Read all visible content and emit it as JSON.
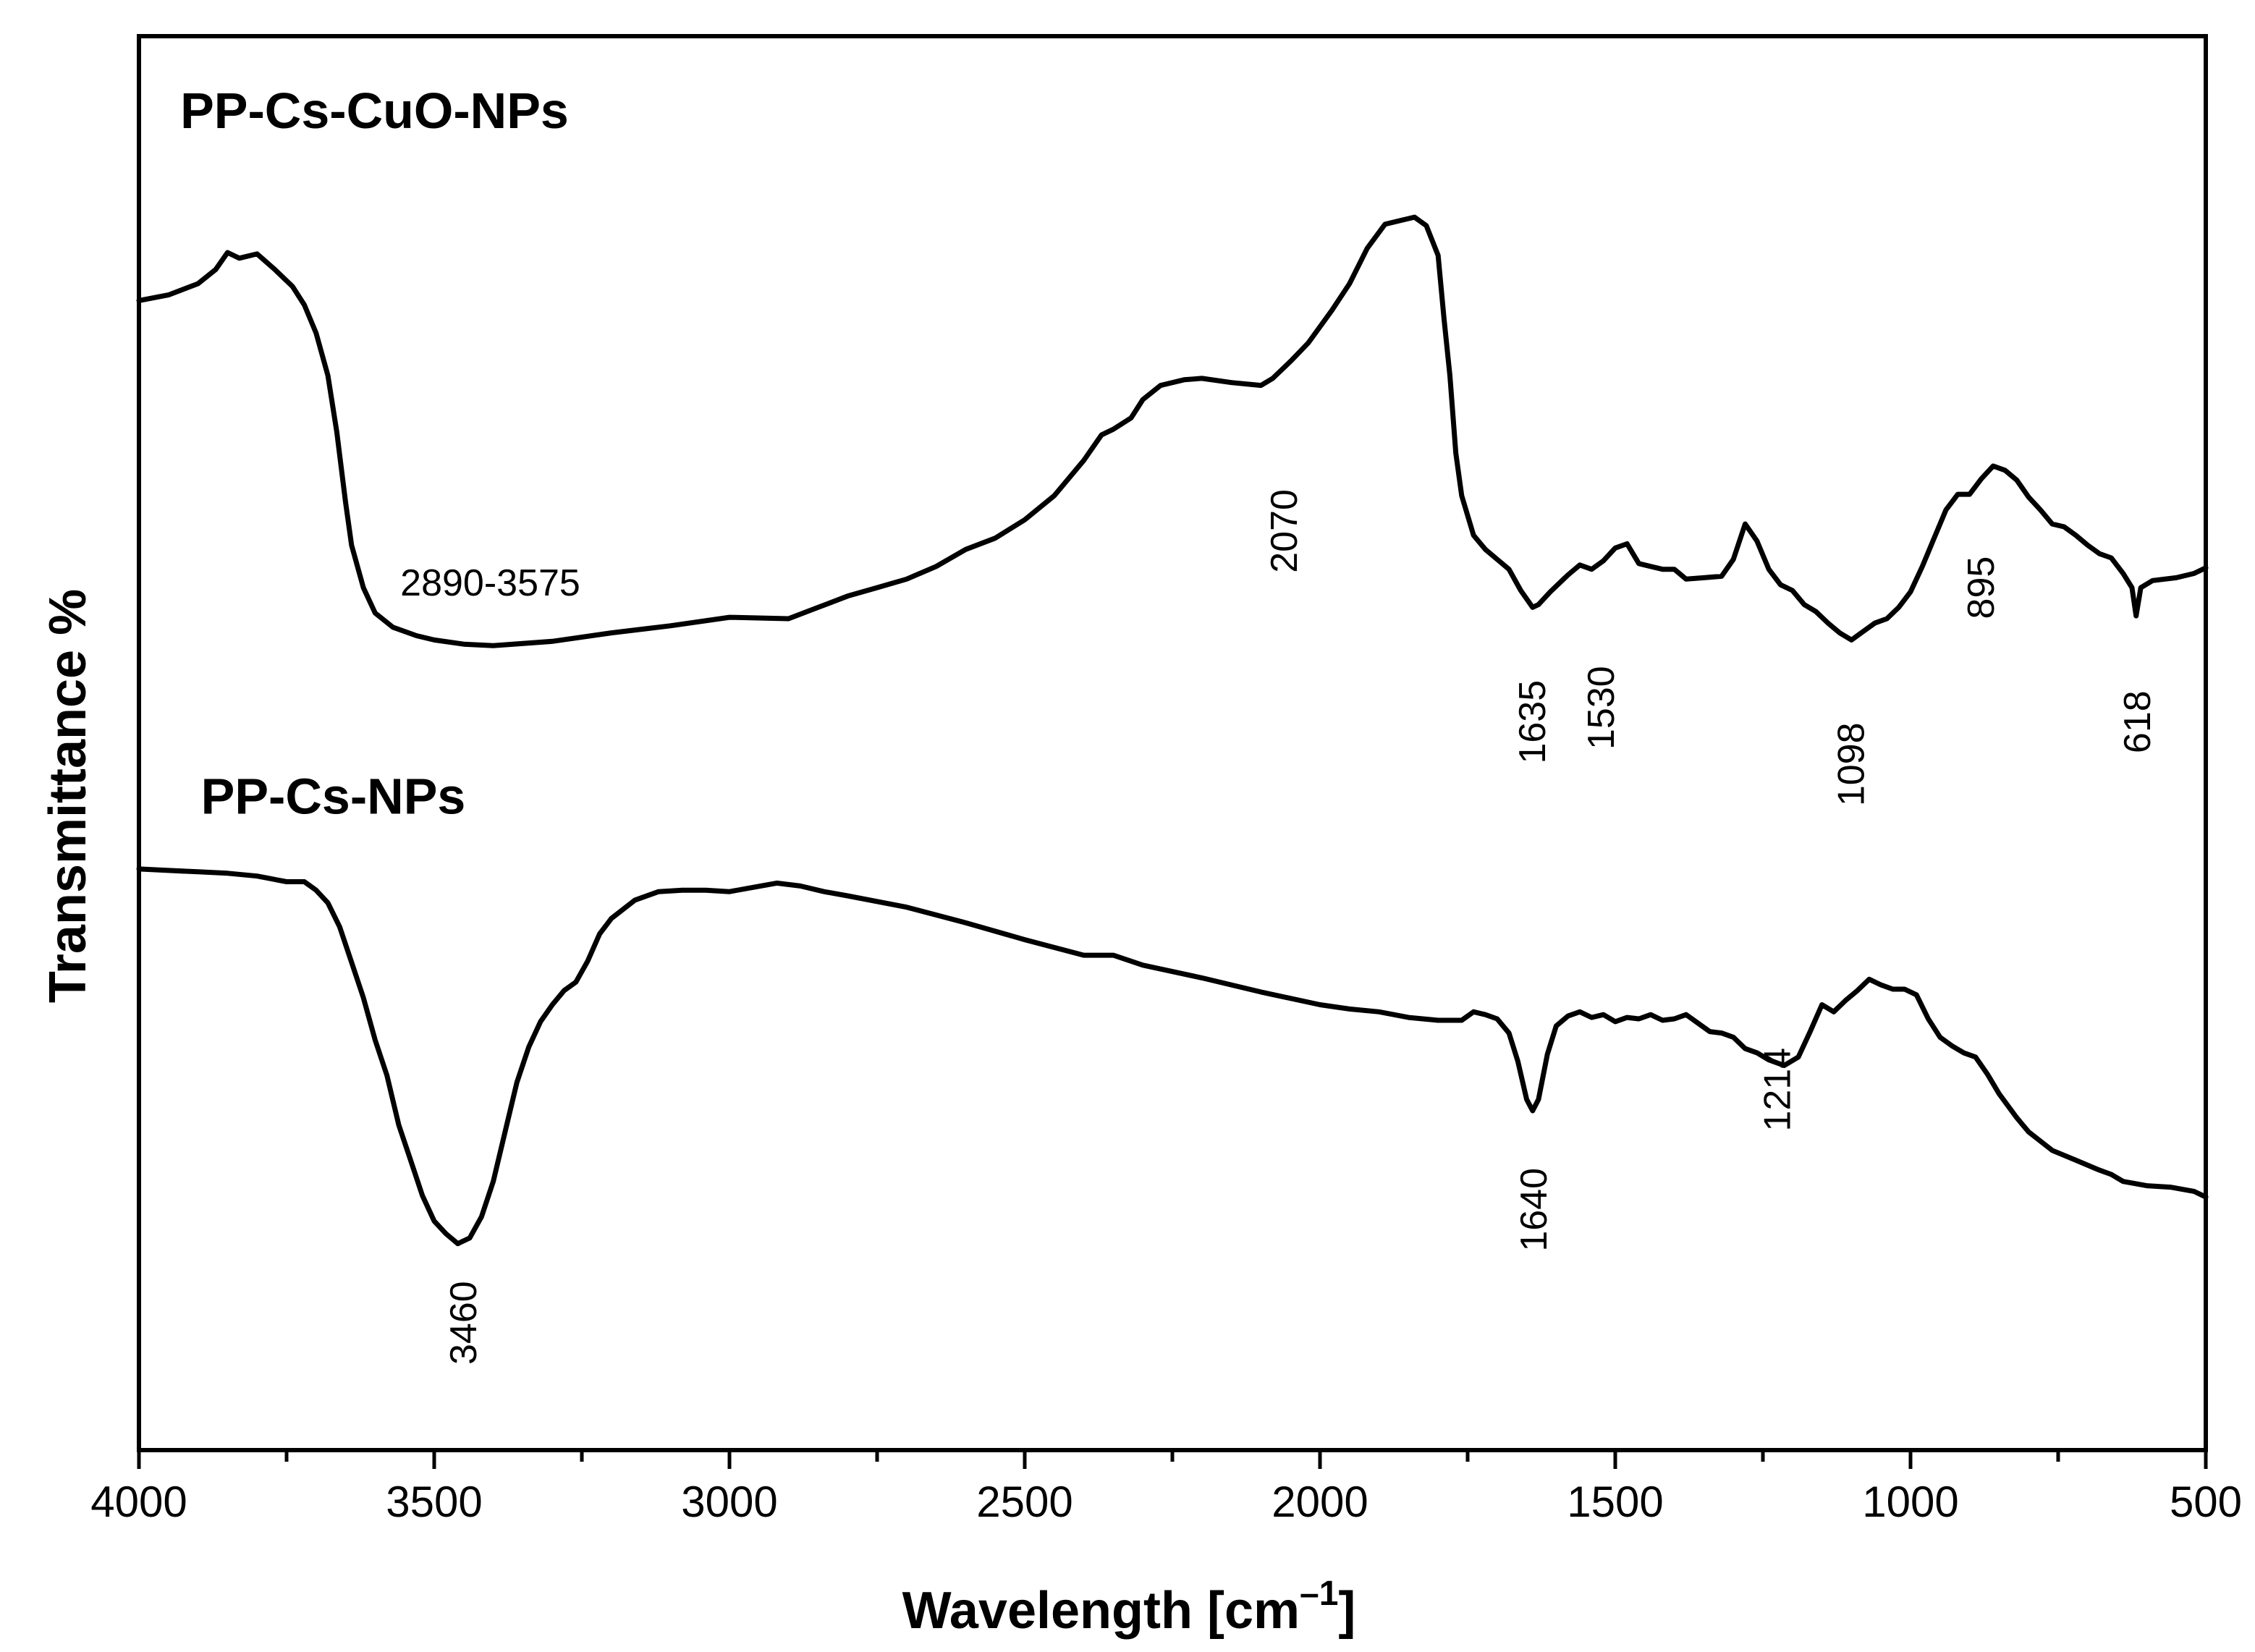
{
  "chart_data": {
    "type": "line",
    "title": "",
    "xlabel": "Wavelength [cm",
    "xlabel_sup": "–1",
    "xlabel_end": "]",
    "ylabel": "Transmittance %",
    "xlim": [
      4000,
      500
    ],
    "ylim": [
      0,
      100
    ],
    "x_ticks": [
      "4000",
      "3500",
      "3000",
      "2500",
      "2000",
      "1500",
      "1000",
      "500"
    ],
    "y_ticks_shown": false,
    "series": [
      {
        "name": "PP-Cs-CuO-NPs",
        "points": [
          [
            4000,
            81.3
          ],
          [
            3950,
            81.7
          ],
          [
            3900,
            82.5
          ],
          [
            3870,
            83.5
          ],
          [
            3850,
            84.7
          ],
          [
            3830,
            84.3
          ],
          [
            3800,
            84.6
          ],
          [
            3770,
            83.5
          ],
          [
            3740,
            82.3
          ],
          [
            3720,
            81.0
          ],
          [
            3700,
            79.0
          ],
          [
            3680,
            76.0
          ],
          [
            3665,
            72.0
          ],
          [
            3650,
            67.0
          ],
          [
            3640,
            64.0
          ],
          [
            3620,
            61.0
          ],
          [
            3600,
            59.2
          ],
          [
            3570,
            58.2
          ],
          [
            3530,
            57.6
          ],
          [
            3500,
            57.3
          ],
          [
            3450,
            57.0
          ],
          [
            3400,
            56.9
          ],
          [
            3300,
            57.2
          ],
          [
            3200,
            57.8
          ],
          [
            3100,
            58.3
          ],
          [
            3000,
            58.9
          ],
          [
            2900,
            58.8
          ],
          [
            2850,
            59.6
          ],
          [
            2800,
            60.4
          ],
          [
            2750,
            61.0
          ],
          [
            2700,
            61.6
          ],
          [
            2650,
            62.5
          ],
          [
            2600,
            63.7
          ],
          [
            2550,
            64.5
          ],
          [
            2500,
            65.8
          ],
          [
            2450,
            67.5
          ],
          [
            2400,
            70.0
          ],
          [
            2370,
            71.8
          ],
          [
            2350,
            72.2
          ],
          [
            2320,
            73.0
          ],
          [
            2300,
            74.3
          ],
          [
            2270,
            75.3
          ],
          [
            2230,
            75.7
          ],
          [
            2200,
            75.8
          ],
          [
            2150,
            75.5
          ],
          [
            2100,
            75.3
          ],
          [
            2080,
            75.8
          ],
          [
            2050,
            77.0
          ],
          [
            2020,
            78.3
          ],
          [
            1980,
            80.6
          ],
          [
            1950,
            82.5
          ],
          [
            1920,
            85.0
          ],
          [
            1890,
            86.7
          ],
          [
            1860,
            87.0
          ],
          [
            1840,
            87.2
          ],
          [
            1820,
            86.6
          ],
          [
            1800,
            84.5
          ],
          [
            1790,
            80.0
          ],
          [
            1780,
            76.0
          ],
          [
            1770,
            70.5
          ],
          [
            1760,
            67.5
          ],
          [
            1740,
            64.7
          ],
          [
            1720,
            63.7
          ],
          [
            1700,
            63.0
          ],
          [
            1680,
            62.3
          ],
          [
            1660,
            60.8
          ],
          [
            1640,
            59.6
          ],
          [
            1630,
            59.8
          ],
          [
            1610,
            60.7
          ],
          [
            1580,
            61.9
          ],
          [
            1560,
            62.6
          ],
          [
            1540,
            62.3
          ],
          [
            1520,
            62.9
          ],
          [
            1500,
            63.8
          ],
          [
            1480,
            64.1
          ],
          [
            1460,
            62.7
          ],
          [
            1440,
            62.5
          ],
          [
            1420,
            62.3
          ],
          [
            1400,
            62.3
          ],
          [
            1380,
            61.6
          ],
          [
            1350,
            61.7
          ],
          [
            1320,
            61.8
          ],
          [
            1300,
            63.0
          ],
          [
            1280,
            65.5
          ],
          [
            1260,
            64.3
          ],
          [
            1240,
            62.3
          ],
          [
            1220,
            61.2
          ],
          [
            1200,
            60.8
          ],
          [
            1180,
            59.8
          ],
          [
            1160,
            59.3
          ],
          [
            1140,
            58.5
          ],
          [
            1120,
            57.8
          ],
          [
            1100,
            57.3
          ],
          [
            1080,
            57.9
          ],
          [
            1060,
            58.5
          ],
          [
            1040,
            58.8
          ],
          [
            1020,
            59.6
          ],
          [
            1000,
            60.7
          ],
          [
            980,
            62.5
          ],
          [
            960,
            64.5
          ],
          [
            940,
            66.5
          ],
          [
            920,
            67.6
          ],
          [
            900,
            67.6
          ],
          [
            880,
            68.7
          ],
          [
            860,
            69.6
          ],
          [
            840,
            69.3
          ],
          [
            820,
            68.6
          ],
          [
            800,
            67.4
          ],
          [
            780,
            66.5
          ],
          [
            760,
            65.5
          ],
          [
            740,
            65.3
          ],
          [
            720,
            64.7
          ],
          [
            700,
            64.0
          ],
          [
            680,
            63.4
          ],
          [
            660,
            63.1
          ],
          [
            640,
            62.0
          ],
          [
            625,
            61.0
          ],
          [
            618,
            59.0
          ],
          [
            610,
            61.0
          ],
          [
            590,
            61.5
          ],
          [
            550,
            61.7
          ],
          [
            520,
            62.0
          ],
          [
            500,
            62.4
          ]
        ]
      },
      {
        "name": "PP-Cs-NPs",
        "points": [
          [
            4000,
            41.1
          ],
          [
            3950,
            41.0
          ],
          [
            3900,
            40.9
          ],
          [
            3850,
            40.8
          ],
          [
            3800,
            40.6
          ],
          [
            3750,
            40.2
          ],
          [
            3720,
            40.2
          ],
          [
            3700,
            39.6
          ],
          [
            3680,
            38.7
          ],
          [
            3660,
            37.0
          ],
          [
            3640,
            34.5
          ],
          [
            3620,
            32.0
          ],
          [
            3600,
            29.0
          ],
          [
            3580,
            26.5
          ],
          [
            3560,
            23.0
          ],
          [
            3540,
            20.5
          ],
          [
            3520,
            18.0
          ],
          [
            3500,
            16.2
          ],
          [
            3480,
            15.3
          ],
          [
            3460,
            14.6
          ],
          [
            3440,
            15.0
          ],
          [
            3420,
            16.5
          ],
          [
            3400,
            19.0
          ],
          [
            3380,
            22.5
          ],
          [
            3360,
            26.0
          ],
          [
            3340,
            28.5
          ],
          [
            3320,
            30.3
          ],
          [
            3300,
            31.5
          ],
          [
            3280,
            32.5
          ],
          [
            3260,
            33.1
          ],
          [
            3240,
            34.6
          ],
          [
            3220,
            36.5
          ],
          [
            3200,
            37.6
          ],
          [
            3160,
            38.9
          ],
          [
            3120,
            39.5
          ],
          [
            3080,
            39.6
          ],
          [
            3040,
            39.6
          ],
          [
            3000,
            39.5
          ],
          [
            2960,
            39.8
          ],
          [
            2920,
            40.1
          ],
          [
            2880,
            39.9
          ],
          [
            2840,
            39.5
          ],
          [
            2800,
            39.2
          ],
          [
            2700,
            38.4
          ],
          [
            2600,
            37.3
          ],
          [
            2500,
            36.1
          ],
          [
            2400,
            35.0
          ],
          [
            2350,
            35.0
          ],
          [
            2300,
            34.3
          ],
          [
            2200,
            33.4
          ],
          [
            2100,
            32.4
          ],
          [
            2000,
            31.5
          ],
          [
            1950,
            31.2
          ],
          [
            1900,
            31.0
          ],
          [
            1850,
            30.6
          ],
          [
            1800,
            30.4
          ],
          [
            1760,
            30.4
          ],
          [
            1740,
            31.0
          ],
          [
            1720,
            30.8
          ],
          [
            1700,
            30.5
          ],
          [
            1680,
            29.5
          ],
          [
            1665,
            27.5
          ],
          [
            1650,
            24.8
          ],
          [
            1640,
            24.0
          ],
          [
            1630,
            24.8
          ],
          [
            1615,
            28.0
          ],
          [
            1600,
            30.0
          ],
          [
            1580,
            30.7
          ],
          [
            1560,
            31.0
          ],
          [
            1540,
            30.6
          ],
          [
            1520,
            30.8
          ],
          [
            1500,
            30.3
          ],
          [
            1480,
            30.6
          ],
          [
            1460,
            30.5
          ],
          [
            1440,
            30.8
          ],
          [
            1420,
            30.4
          ],
          [
            1400,
            30.5
          ],
          [
            1380,
            30.8
          ],
          [
            1360,
            30.2
          ],
          [
            1340,
            29.6
          ],
          [
            1320,
            29.5
          ],
          [
            1300,
            29.2
          ],
          [
            1280,
            28.4
          ],
          [
            1260,
            28.1
          ],
          [
            1240,
            27.6
          ],
          [
            1214,
            27.2
          ],
          [
            1190,
            27.8
          ],
          [
            1170,
            29.6
          ],
          [
            1150,
            31.5
          ],
          [
            1130,
            31.0
          ],
          [
            1110,
            31.8
          ],
          [
            1090,
            32.5
          ],
          [
            1070,
            33.3
          ],
          [
            1050,
            32.9
          ],
          [
            1030,
            32.6
          ],
          [
            1010,
            32.6
          ],
          [
            990,
            32.2
          ],
          [
            970,
            30.5
          ],
          [
            950,
            29.2
          ],
          [
            930,
            28.6
          ],
          [
            910,
            28.1
          ],
          [
            890,
            27.8
          ],
          [
            870,
            26.6
          ],
          [
            850,
            25.2
          ],
          [
            820,
            23.5
          ],
          [
            800,
            22.5
          ],
          [
            760,
            21.2
          ],
          [
            720,
            20.5
          ],
          [
            680,
            19.8
          ],
          [
            660,
            19.5
          ],
          [
            640,
            19.0
          ],
          [
            600,
            18.7
          ],
          [
            560,
            18.6
          ],
          [
            520,
            18.3
          ],
          [
            500,
            17.9
          ]
        ]
      }
    ],
    "series_labels": [
      {
        "text": "PP-Cs-CuO-NPs",
        "x": 3930,
        "y": 93.5
      },
      {
        "text": "PP-Cs-NPs",
        "x": 3895,
        "y": 45.0
      }
    ],
    "annotations": [
      {
        "text": "2890-3575",
        "x": 3405,
        "y": 61.3,
        "rotate": 0
      },
      {
        "text": "2070",
        "x": 2060,
        "y": 65.0,
        "rotate": -90
      },
      {
        "text": "1635",
        "x": 1640,
        "y": 51.5,
        "rotate": -90
      },
      {
        "text": "1530",
        "x": 1523,
        "y": 52.5,
        "rotate": -90
      },
      {
        "text": "1098",
        "x": 1100,
        "y": 48.5,
        "rotate": -90
      },
      {
        "text": "895",
        "x": 880,
        "y": 61.0,
        "rotate": -90
      },
      {
        "text": "618",
        "x": 615,
        "y": 51.5,
        "rotate": -90
      },
      {
        "text": "3460",
        "x": 3450,
        "y": 9.0,
        "rotate": -90
      },
      {
        "text": "1640",
        "x": 1637,
        "y": 17.0,
        "rotate": -90
      },
      {
        "text": "1214",
        "x": 1225,
        "y": 25.5,
        "rotate": -90
      }
    ]
  }
}
